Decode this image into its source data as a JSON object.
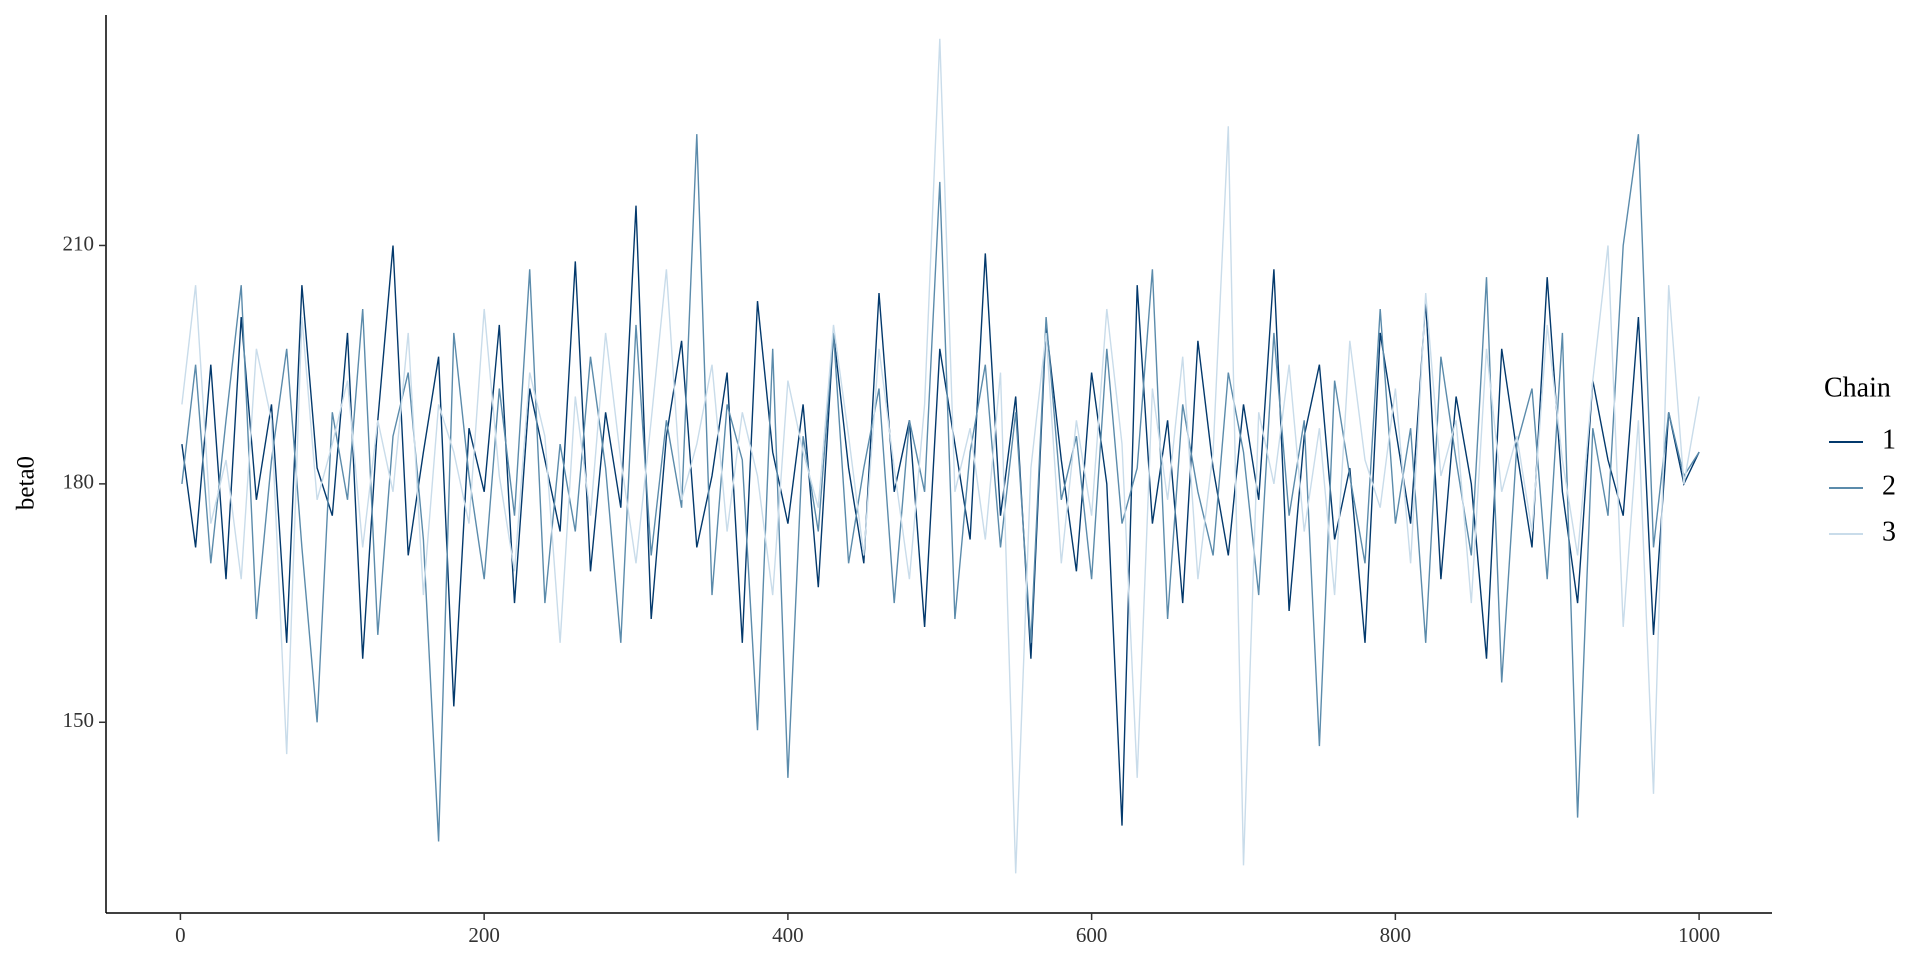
{
  "chart_data": {
    "type": "line",
    "y_label": "beta0",
    "legend_title": "Chain",
    "legend": "right",
    "grid": false,
    "x": [
      1,
      10,
      20,
      30,
      40,
      50,
      60,
      70,
      80,
      90,
      100,
      110,
      120,
      130,
      140,
      150,
      160,
      170,
      180,
      190,
      200,
      210,
      220,
      230,
      240,
      250,
      260,
      270,
      280,
      290,
      300,
      310,
      320,
      330,
      340,
      350,
      360,
      370,
      380,
      390,
      400,
      410,
      420,
      430,
      440,
      450,
      460,
      470,
      480,
      490,
      500,
      510,
      520,
      530,
      540,
      550,
      560,
      570,
      580,
      590,
      600,
      610,
      620,
      630,
      640,
      650,
      660,
      670,
      680,
      690,
      700,
      710,
      720,
      730,
      740,
      750,
      760,
      770,
      780,
      790,
      800,
      810,
      820,
      830,
      840,
      850,
      860,
      870,
      880,
      890,
      900,
      910,
      920,
      930,
      940,
      950,
      960,
      970,
      980,
      990,
      1000
    ],
    "series": [
      {
        "name": "1",
        "color": "#03396c",
        "values": [
          185,
          172,
          195,
          168,
          201,
          178,
          190,
          160,
          205,
          182,
          176,
          199,
          158,
          188,
          210,
          171,
          184,
          196,
          152,
          187,
          179,
          200,
          165,
          192,
          183,
          174,
          208,
          169,
          189,
          177,
          215,
          163,
          186,
          198,
          172,
          181,
          194,
          160,
          203,
          184,
          175,
          190,
          167,
          199,
          182,
          170,
          204,
          179,
          188,
          162,
          197,
          185,
          173,
          209,
          176,
          191,
          158,
          200,
          183,
          169,
          194,
          180,
          137,
          205,
          175,
          188,
          165,
          198,
          182,
          171,
          190,
          178,
          207,
          164,
          186,
          195,
          173,
          182,
          160,
          199,
          187,
          175,
          203,
          168,
          191,
          180,
          158,
          197,
          184,
          172,
          206,
          179,
          165,
          193,
          183,
          176,
          201,
          161,
          189,
          180,
          184
        ]
      },
      {
        "name": "2",
        "color": "#5b8bab",
        "values": [
          180,
          195,
          170,
          188,
          205,
          163,
          183,
          197,
          172,
          150,
          189,
          178,
          202,
          161,
          186,
          194,
          173,
          135,
          199,
          181,
          168,
          192,
          176,
          207,
          165,
          185,
          174,
          196,
          182,
          160,
          200,
          171,
          188,
          177,
          224,
          166,
          190,
          183,
          149,
          197,
          143,
          186,
          174,
          199,
          170,
          182,
          192,
          165,
          188,
          179,
          218,
          163,
          184,
          195,
          172,
          189,
          160,
          201,
          178,
          186,
          168,
          197,
          175,
          182,
          207,
          163,
          190,
          179,
          171,
          194,
          184,
          166,
          199,
          176,
          188,
          147,
          193,
          181,
          170,
          202,
          175,
          187,
          160,
          196,
          183,
          171,
          206,
          155,
          185,
          192,
          168,
          199,
          138,
          187,
          176,
          210,
          224,
          172,
          189,
          181,
          184
        ]
      },
      {
        "name": "3",
        "color": "#c9dcea",
        "values": [
          190,
          205,
          175,
          183,
          168,
          197,
          188,
          146,
          201,
          178,
          185,
          193,
          172,
          188,
          179,
          199,
          166,
          190,
          184,
          175,
          202,
          181,
          169,
          194,
          186,
          160,
          191,
          176,
          199,
          183,
          170,
          188,
          207,
          178,
          185,
          195,
          174,
          189,
          181,
          166,
          193,
          184,
          177,
          200,
          186,
          171,
          197,
          182,
          168,
          190,
          236,
          179,
          187,
          173,
          194,
          131,
          182,
          199,
          170,
          188,
          176,
          202,
          185,
          143,
          192,
          178,
          196,
          168,
          184,
          225,
          132,
          189,
          180,
          195,
          174,
          187,
          166,
          198,
          183,
          177,
          192,
          170,
          204,
          181,
          188,
          165,
          197,
          179,
          186,
          174,
          200,
          183,
          171,
          193,
          210,
          162,
          188,
          141,
          205,
          180,
          191
        ]
      }
    ],
    "xlim": [
      -49,
      1048
    ],
    "ylim": [
      126,
      239
    ],
    "xticks": [
      0,
      200,
      400,
      600,
      800,
      1000
    ],
    "yticks": [
      150,
      180,
      210
    ]
  }
}
